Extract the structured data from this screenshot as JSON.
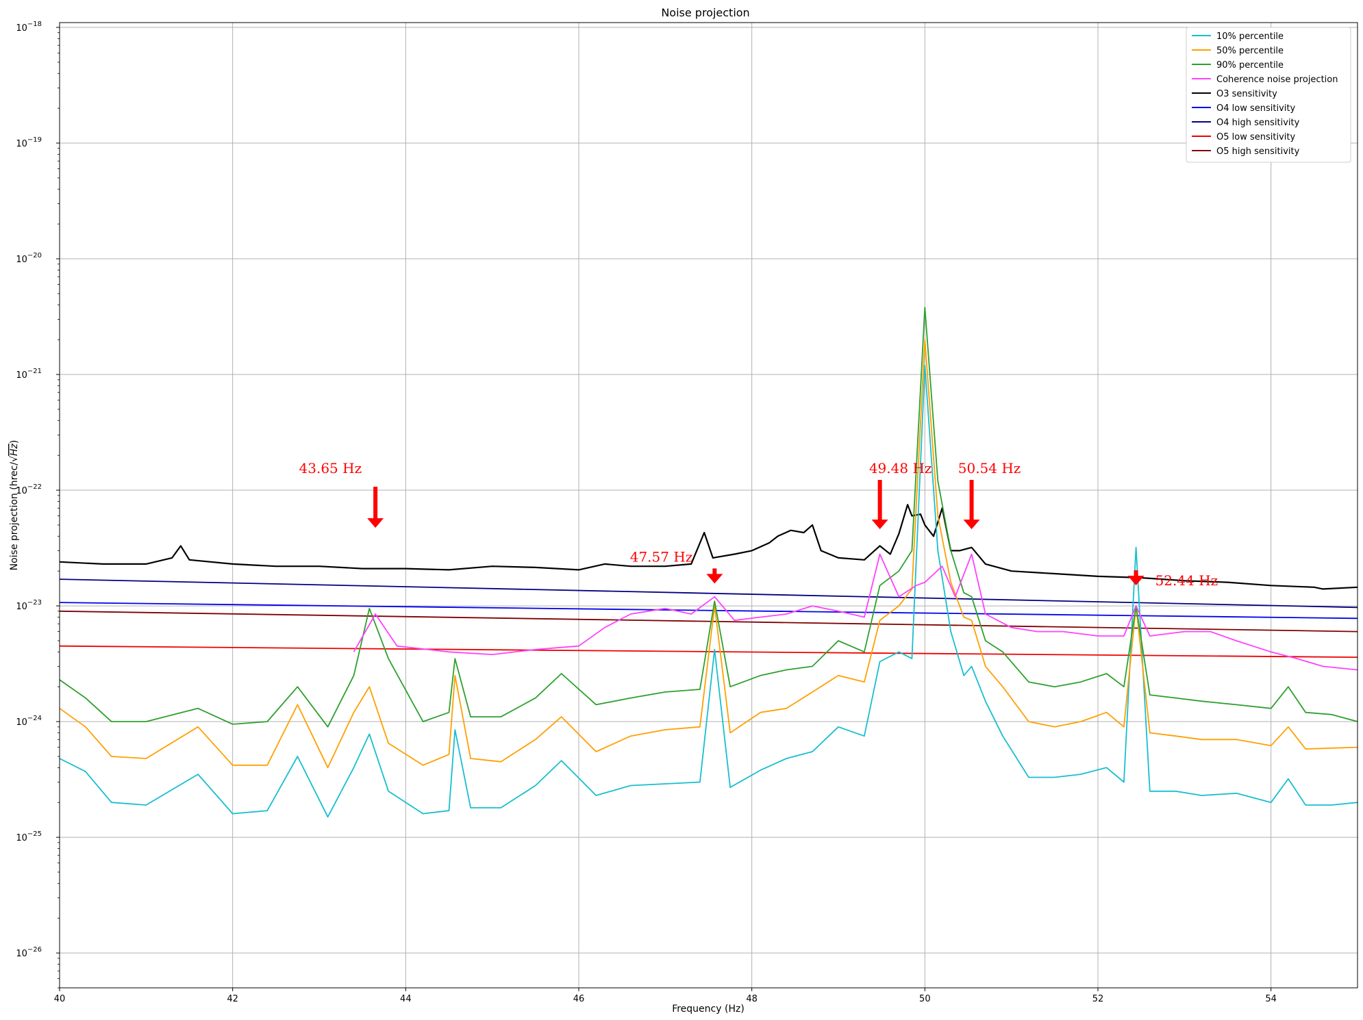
{
  "chart_data": {
    "type": "line",
    "title": "Noise projection",
    "xlabel": "Frequency (Hz)",
    "ylabel_prefix": "Noise projection (hrec/",
    "ylabel_radical": "√",
    "ylabel_hz": "Hz",
    "ylabel_suffix": ")",
    "xlim": [
      40,
      55
    ],
    "ylim": [
      5e-27,
      1.1e-18
    ],
    "yscale": "log",
    "grid": true,
    "legend_position": "top-right",
    "x_ticks": [
      40,
      42,
      44,
      46,
      48,
      50,
      52,
      54
    ],
    "x_tick_labels": [
      "40",
      "42",
      "44",
      "46",
      "48",
      "50",
      "52",
      "54"
    ],
    "y_ticks": [
      {
        "value": 1e-26,
        "base": "10",
        "exp": "−26"
      },
      {
        "value": 1e-25,
        "base": "10",
        "exp": "−25"
      },
      {
        "value": 1e-24,
        "base": "10",
        "exp": "−24"
      },
      {
        "value": 1e-23,
        "base": "10",
        "exp": "−23"
      },
      {
        "value": 1e-22,
        "base": "10",
        "exp": "−22"
      },
      {
        "value": 1e-21,
        "base": "10",
        "exp": "−21"
      },
      {
        "value": 1e-20,
        "base": "10",
        "exp": "−20"
      },
      {
        "value": 1e-19,
        "base": "10",
        "exp": "−19"
      },
      {
        "value": 1e-18,
        "base": "10",
        "exp": "−18"
      }
    ],
    "series": [
      {
        "name": "10% percentile",
        "color": "#17becf",
        "x": [
          40,
          40.3,
          40.6,
          41,
          41.6,
          42,
          42.4,
          42.75,
          43.1,
          43.4,
          43.58,
          43.8,
          44.2,
          44.5,
          44.57,
          44.75,
          45.1,
          45.5,
          45.8,
          46.2,
          46.6,
          47,
          47.4,
          47.57,
          47.75,
          48.1,
          48.4,
          48.7,
          49,
          49.3,
          49.48,
          49.7,
          49.85,
          50,
          50.15,
          50.3,
          50.45,
          50.54,
          50.7,
          50.9,
          51.2,
          51.5,
          51.8,
          52.1,
          52.3,
          52.44,
          52.6,
          52.9,
          53.2,
          53.6,
          54,
          54.2,
          54.4,
          54.7,
          55
        ],
        "y": [
          4.8e-25,
          3.7e-25,
          2e-25,
          1.9e-25,
          3.5e-25,
          1.6e-25,
          1.7e-25,
          5e-25,
          1.5e-25,
          4e-25,
          7.8e-25,
          2.5e-25,
          1.6e-25,
          1.7e-25,
          8.5e-25,
          1.8e-25,
          1.8e-25,
          2.8e-25,
          4.6e-25,
          2.3e-25,
          2.8e-25,
          2.9e-25,
          3e-25,
          4.2e-24,
          2.7e-25,
          3.8e-25,
          4.8e-25,
          5.5e-25,
          9e-25,
          7.5e-25,
          3.3e-24,
          4e-24,
          3.5e-24,
          1.2e-21,
          3e-23,
          6e-24,
          2.5e-24,
          3e-24,
          1.5e-24,
          7.5e-25,
          3.3e-25,
          3.3e-25,
          3.5e-25,
          4e-25,
          3e-25,
          3.2e-23,
          2.5e-25,
          2.5e-25,
          2.3e-25,
          2.4e-25,
          2e-25,
          3.2e-25,
          1.9e-25,
          1.9e-25,
          2e-25
        ]
      },
      {
        "name": "50% percentile",
        "color": "#ff9f00",
        "x": [
          40,
          40.3,
          40.6,
          41,
          41.6,
          42,
          42.4,
          42.75,
          43.1,
          43.4,
          43.58,
          43.8,
          44.2,
          44.5,
          44.57,
          44.75,
          45.1,
          45.5,
          45.8,
          46.2,
          46.6,
          47,
          47.4,
          47.57,
          47.75,
          48.1,
          48.4,
          48.7,
          49,
          49.3,
          49.48,
          49.7,
          49.85,
          50,
          50.15,
          50.3,
          50.45,
          50.54,
          50.7,
          50.9,
          51.2,
          51.5,
          51.8,
          52.1,
          52.3,
          52.44,
          52.6,
          52.9,
          53.2,
          53.6,
          54,
          54.2,
          54.4,
          54.7,
          55
        ],
        "y": [
          1.3e-24,
          9e-25,
          5e-25,
          4.8e-25,
          9e-25,
          4.2e-25,
          4.2e-25,
          1.4e-24,
          4e-25,
          1.2e-24,
          2e-24,
          6.5e-25,
          4.2e-25,
          5.2e-25,
          2.5e-24,
          4.8e-25,
          4.5e-25,
          7e-25,
          1.1e-24,
          5.5e-25,
          7.5e-25,
          8.5e-25,
          9e-25,
          1e-23,
          8e-25,
          1.2e-24,
          1.3e-24,
          1.8e-24,
          2.5e-24,
          2.2e-24,
          7.5e-24,
          1e-23,
          1.4e-23,
          2e-21,
          6e-23,
          1.6e-23,
          8e-24,
          7.5e-24,
          3e-24,
          2e-24,
          1e-24,
          9e-25,
          1e-24,
          1.2e-24,
          9e-25,
          1e-23,
          8e-25,
          7.5e-25,
          7e-25,
          7e-25,
          6.2e-25,
          9e-25,
          5.8e-25,
          5.9e-25,
          6e-25
        ]
      },
      {
        "name": "90% percentile",
        "color": "#2ca02c",
        "x": [
          40,
          40.3,
          40.6,
          41,
          41.6,
          42,
          42.4,
          42.75,
          43.1,
          43.4,
          43.58,
          43.8,
          44.2,
          44.5,
          44.57,
          44.75,
          45.1,
          45.5,
          45.8,
          46.2,
          46.6,
          47,
          47.4,
          47.57,
          47.75,
          48.1,
          48.4,
          48.7,
          49,
          49.3,
          49.48,
          49.7,
          49.85,
          50,
          50.15,
          50.3,
          50.45,
          50.54,
          50.7,
          50.9,
          51.2,
          51.5,
          51.8,
          52.1,
          52.3,
          52.44,
          52.6,
          52.9,
          53.2,
          53.6,
          54,
          54.2,
          54.4,
          54.7,
          55
        ],
        "y": [
          2.3e-24,
          1.6e-24,
          1e-24,
          1e-24,
          1.3e-24,
          9.5e-25,
          1e-24,
          2e-24,
          9e-25,
          2.5e-24,
          9.5e-24,
          3.5e-24,
          1e-24,
          1.2e-24,
          3.5e-24,
          1.1e-24,
          1.1e-24,
          1.6e-24,
          2.6e-24,
          1.4e-24,
          1.6e-24,
          1.8e-24,
          1.9e-24,
          1.1e-23,
          2e-24,
          2.5e-24,
          2.8e-24,
          3e-24,
          5e-24,
          4e-24,
          1.5e-23,
          2e-23,
          3e-23,
          3.8e-21,
          1.2e-22,
          3e-23,
          1.3e-23,
          1.2e-23,
          5e-24,
          4e-24,
          2.2e-24,
          2e-24,
          2.2e-24,
          2.6e-24,
          2e-24,
          1e-23,
          1.7e-24,
          1.6e-24,
          1.5e-24,
          1.4e-24,
          1.3e-24,
          2e-24,
          1.2e-24,
          1.15e-24,
          1e-24
        ]
      },
      {
        "name": "Coherence noise projection",
        "color": "#ff40ff",
        "x": [
          43.4,
          43.65,
          43.9,
          44.5,
          45,
          45.5,
          46,
          46.3,
          46.6,
          47,
          47.3,
          47.57,
          47.8,
          48.1,
          48.4,
          48.7,
          49,
          49.3,
          49.48,
          49.7,
          49.9,
          50,
          50.2,
          50.35,
          50.54,
          50.7,
          51,
          51.3,
          51.6,
          52,
          52.3,
          52.44,
          52.6,
          53,
          53.3,
          53.6,
          54,
          54.3,
          54.6,
          55
        ],
        "y": [
          4e-24,
          8.5e-24,
          4.5e-24,
          4e-24,
          3.8e-24,
          4.2e-24,
          4.5e-24,
          6.5e-24,
          8.5e-24,
          9.5e-24,
          8.5e-24,
          1.2e-23,
          7.5e-24,
          8e-24,
          8.5e-24,
          1e-23,
          9e-24,
          8e-24,
          2.8e-23,
          1.2e-23,
          1.5e-23,
          1.6e-23,
          2.2e-23,
          1.2e-23,
          2.8e-23,
          8.5e-24,
          6.5e-24,
          6e-24,
          6e-24,
          5.5e-24,
          5.5e-24,
          1e-23,
          5.5e-24,
          6e-24,
          6e-24,
          5e-24,
          4e-24,
          3.5e-24,
          3e-24,
          2.8e-24
        ]
      },
      {
        "name": "O3 sensitivity",
        "color": "#000000",
        "x": [
          40,
          40.5,
          41,
          41.3,
          41.4,
          41.5,
          42,
          42.5,
          43,
          43.5,
          44,
          44.5,
          45,
          45.5,
          46,
          46.3,
          46.6,
          47,
          47.3,
          47.45,
          47.55,
          47.8,
          48,
          48.2,
          48.3,
          48.45,
          48.6,
          48.7,
          48.8,
          49,
          49.3,
          49.48,
          49.6,
          49.7,
          49.8,
          49.85,
          49.95,
          50,
          50.1,
          50.2,
          50.3,
          50.4,
          50.54,
          50.7,
          51,
          51.5,
          52,
          52.5,
          53,
          53.5,
          54,
          54.5,
          54.6,
          55
        ],
        "y": [
          2.4e-23,
          2.3e-23,
          2.3e-23,
          2.6e-23,
          3.3e-23,
          2.5e-23,
          2.3e-23,
          2.2e-23,
          2.2e-23,
          2.1e-23,
          2.1e-23,
          2.05e-23,
          2.2e-23,
          2.15e-23,
          2.05e-23,
          2.3e-23,
          2.2e-23,
          2.2e-23,
          2.3e-23,
          4.3e-23,
          2.6e-23,
          2.8e-23,
          3e-23,
          3.5e-23,
          4e-23,
          4.5e-23,
          4.3e-23,
          5e-23,
          3e-23,
          2.6e-23,
          2.5e-23,
          3.3e-23,
          2.8e-23,
          4.2e-23,
          7.5e-23,
          6e-23,
          6.2e-23,
          5e-23,
          4e-23,
          7e-23,
          3e-23,
          3e-23,
          3.2e-23,
          2.3e-23,
          2e-23,
          1.9e-23,
          1.8e-23,
          1.75e-23,
          1.65e-23,
          1.6e-23,
          1.5e-23,
          1.45e-23,
          1.4e-23,
          1.45e-23
        ]
      },
      {
        "name": "O4 low sensitivity",
        "color": "#0000ee",
        "x": [
          40,
          55
        ],
        "y": [
          1.07e-23,
          7.8e-24
        ]
      },
      {
        "name": "O4 high sensitivity",
        "color": "#00007f",
        "x": [
          40,
          55
        ],
        "y": [
          1.7e-23,
          9.7e-24
        ]
      },
      {
        "name": "O5 low sensitivity",
        "color": "#ee0000",
        "x": [
          40,
          55
        ],
        "y": [
          4.5e-24,
          3.6e-24
        ]
      },
      {
        "name": "O5 high sensitivity",
        "color": "#7f0000",
        "x": [
          40,
          55
        ],
        "y": [
          9e-24,
          6e-24
        ]
      }
    ],
    "annotations": [
      {
        "text": "43.65 Hz",
        "x": 43.65,
        "color": "#ff0000"
      },
      {
        "text": "47.57 Hz",
        "x": 47.57,
        "color": "#ff0000"
      },
      {
        "text": "49.48 Hz",
        "x": 49.48,
        "color": "#ff0000"
      },
      {
        "text": "50.54 Hz",
        "x": 50.54,
        "color": "#ff0000"
      },
      {
        "text": "52.44 Hz",
        "x": 52.44,
        "color": "#ff0000"
      }
    ]
  }
}
